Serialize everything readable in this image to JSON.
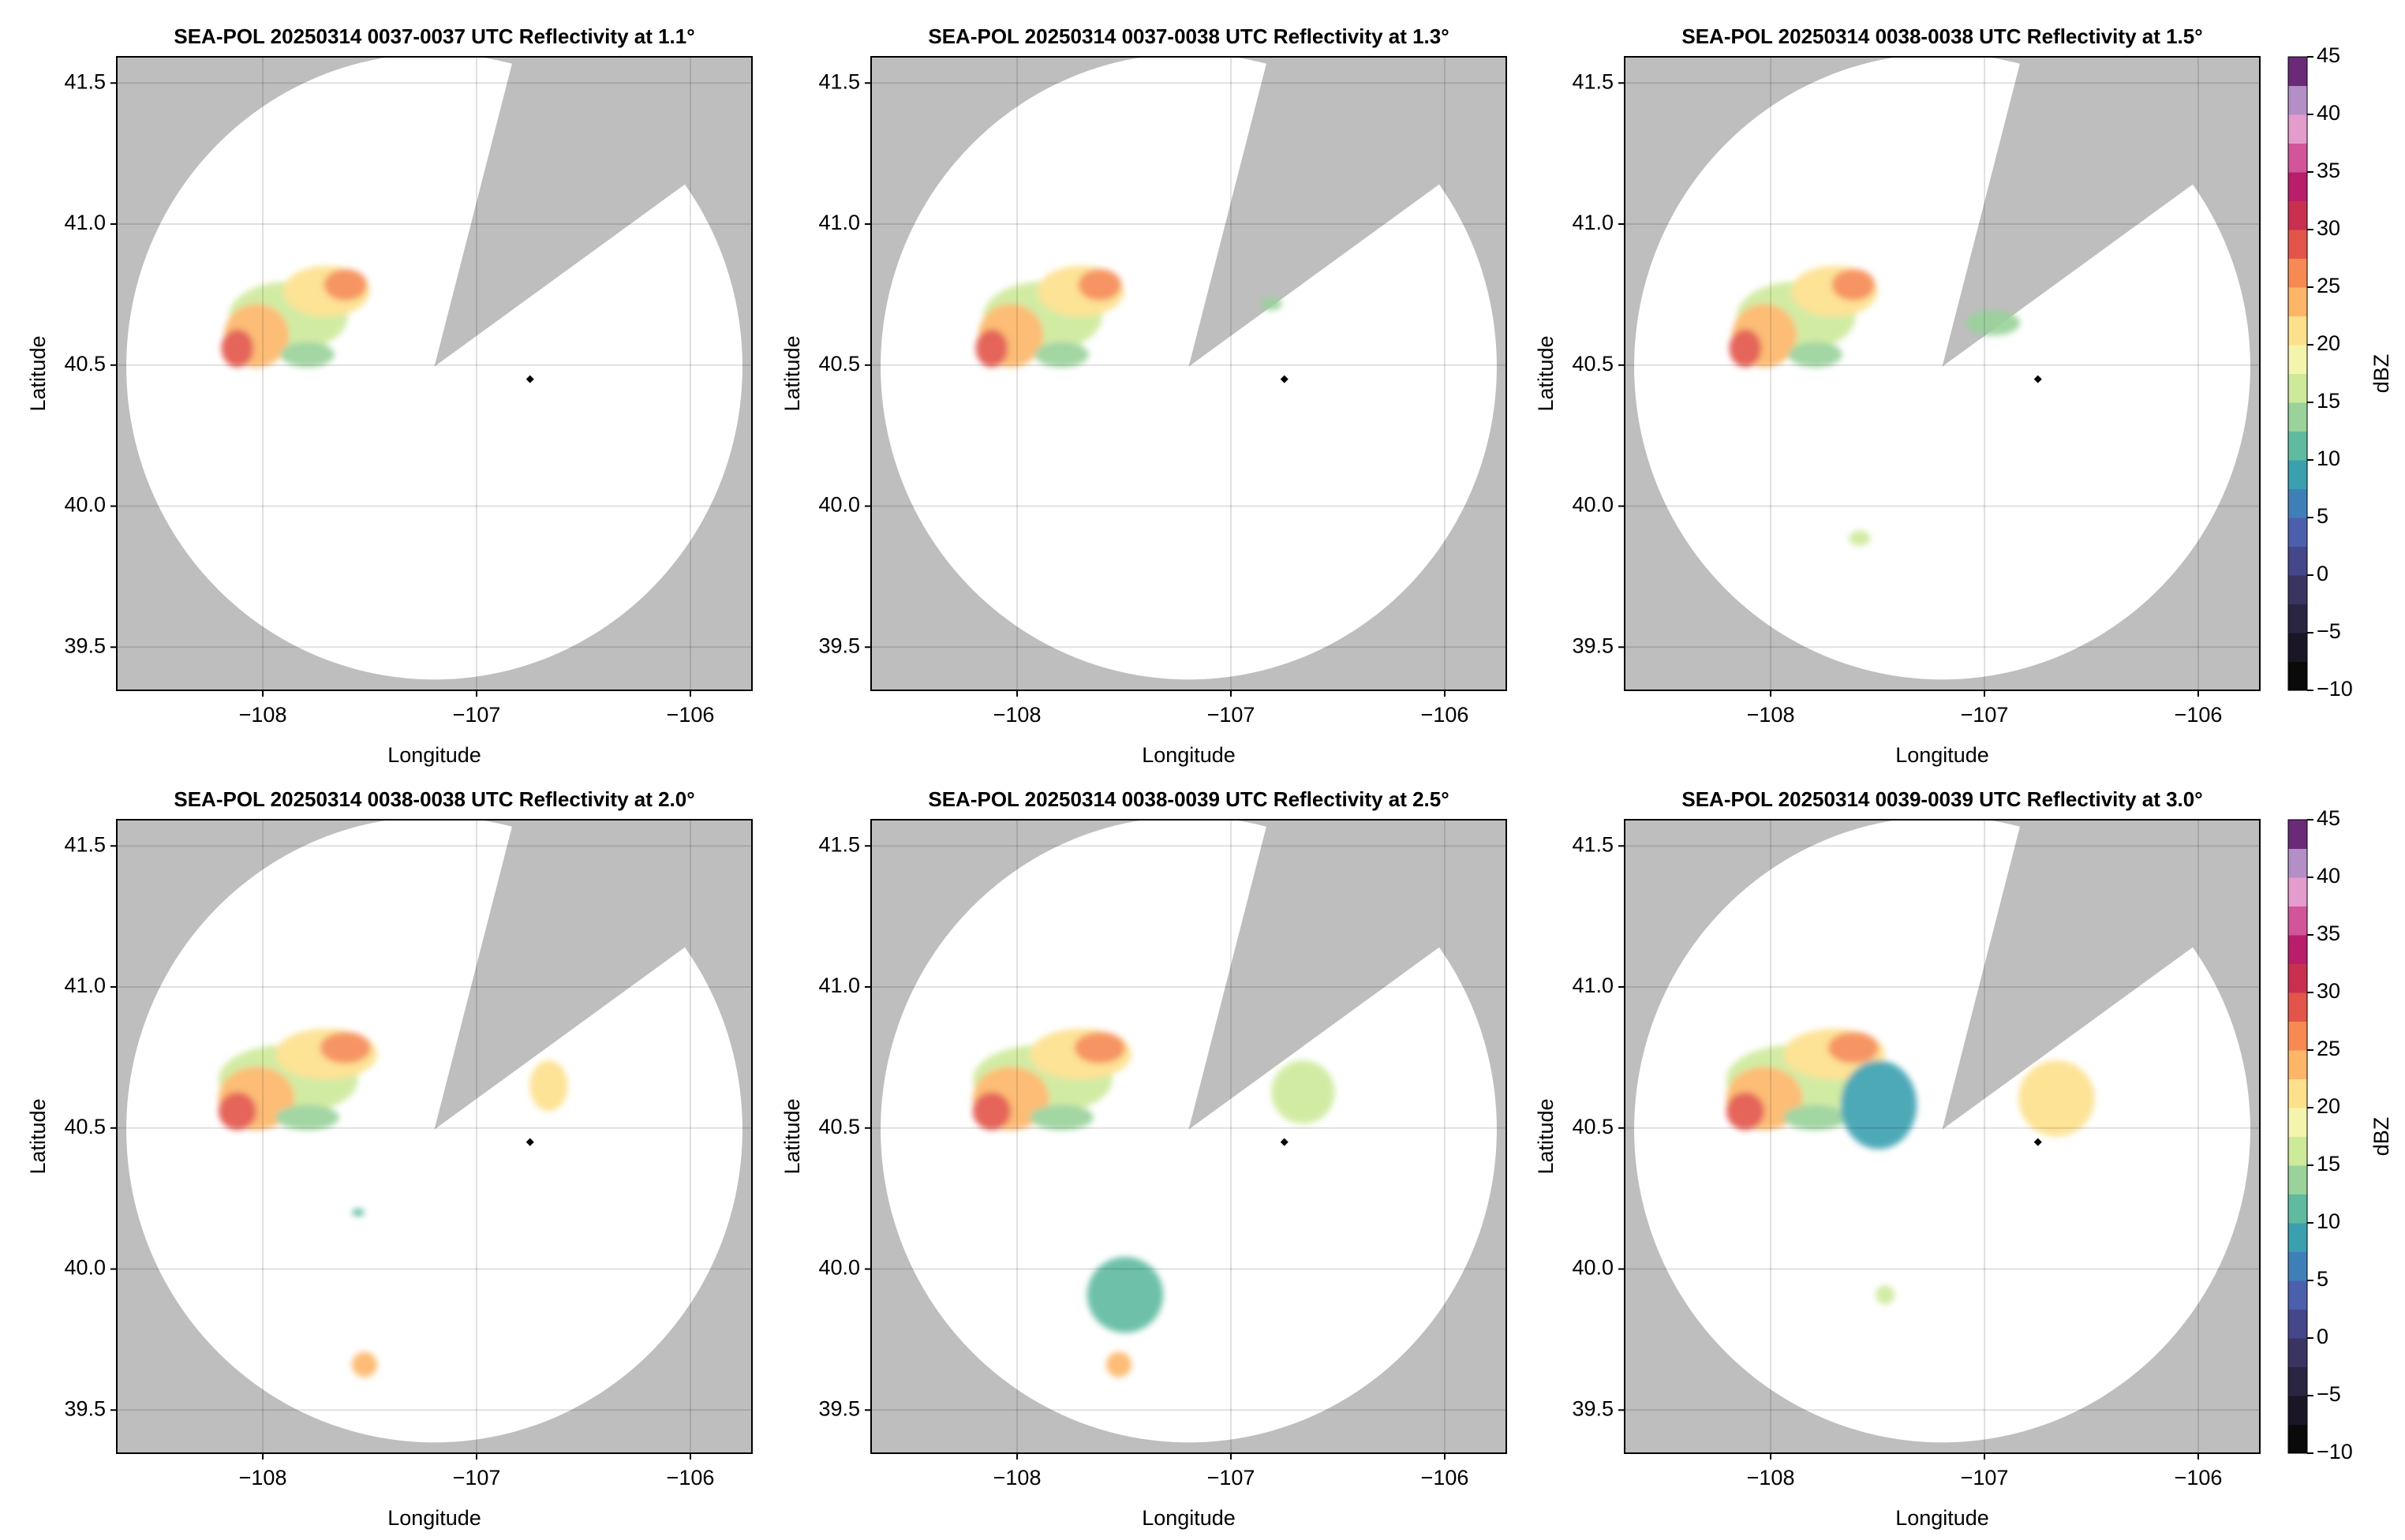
{
  "chart_data": [
    {
      "type": "radar",
      "title": "SEA-POL 20250314 0037-0037 UTC Reflectivity at 1.1°",
      "xlabel": "Longitude",
      "ylabel": "Latitude",
      "xlim": [
        -108.683,
        -105.712
      ],
      "ylim": [
        39.347,
        41.593
      ],
      "xticks": [
        {
          "value": -108,
          "label": "−108"
        },
        {
          "value": -107,
          "label": "−107"
        },
        {
          "value": -106,
          "label": "−106"
        }
      ],
      "yticks": [
        39.5,
        {
          "value": 40,
          "label": "40.0"
        },
        40.5,
        {
          "value": 41,
          "label": "41.0"
        },
        41.5
      ],
      "grid": true,
      "site": {
        "x": -106.75,
        "y": 40.45
      }
    },
    {
      "type": "radar",
      "title": "SEA-POL 20250314 0037-0038 UTC Reflectivity at 1.3°",
      "xlabel": "Longitude",
      "ylabel": "Latitude",
      "xlim": [
        -108.683,
        -105.712
      ],
      "ylim": [
        39.347,
        41.593
      ],
      "xticks": [
        {
          "value": -108,
          "label": "−108"
        },
        {
          "value": -107,
          "label": "−107"
        },
        {
          "value": -106,
          "label": "−106"
        }
      ],
      "yticks": [
        39.5,
        {
          "value": 40,
          "label": "40.0"
        },
        40.5,
        {
          "value": 41,
          "label": "41.0"
        },
        41.5
      ],
      "grid": true,
      "site": {
        "x": -106.75,
        "y": 40.45
      }
    },
    {
      "type": "radar",
      "title": "SEA-POL 20250314 0038-0038 UTC Reflectivity at 1.5°",
      "xlabel": "Longitude",
      "ylabel": "Latitude",
      "xlim": [
        -108.683,
        -105.712
      ],
      "ylim": [
        39.347,
        41.593
      ],
      "xticks": [
        {
          "value": -108,
          "label": "−108"
        },
        {
          "value": -107,
          "label": "−107"
        },
        {
          "value": -106,
          "label": "−106"
        }
      ],
      "yticks": [
        39.5,
        {
          "value": 40,
          "label": "40.0"
        },
        40.5,
        {
          "value": 41,
          "label": "41.0"
        },
        41.5
      ],
      "grid": true,
      "site": {
        "x": -106.75,
        "y": 40.45
      },
      "colorbar": {
        "label": "dBZ",
        "lim": [
          -10,
          45
        ],
        "ticks": [
          {
            "value": -10,
            "label": "−10"
          },
          {
            "value": -5,
            "label": "−5"
          },
          0,
          5,
          10,
          15,
          20,
          25,
          30,
          35,
          40,
          45
        ],
        "colors": [
          "#0a0a0a",
          "#1a1626",
          "#2a2540",
          "#3a3460",
          "#46468a",
          "#4c5fad",
          "#3f7fb8",
          "#3aa0b0",
          "#5fbaa0",
          "#99d29a",
          "#cde99a",
          "#f3f5ad",
          "#fde08b",
          "#fdb668",
          "#f68a52",
          "#e3554a",
          "#c9304f",
          "#b81e6a",
          "#d2559a",
          "#e49ccd",
          "#b48ec6",
          "#6a2a78"
        ]
      }
    },
    {
      "type": "radar",
      "title": "SEA-POL 20250314 0038-0038 UTC Reflectivity at 2.0°",
      "xlabel": "Longitude",
      "ylabel": "Latitude",
      "xlim": [
        -108.683,
        -105.712
      ],
      "ylim": [
        39.347,
        41.593
      ],
      "xticks": [
        {
          "value": -108,
          "label": "−108"
        },
        {
          "value": -107,
          "label": "−107"
        },
        {
          "value": -106,
          "label": "−106"
        }
      ],
      "yticks": [
        39.5,
        {
          "value": 40,
          "label": "40.0"
        },
        40.5,
        {
          "value": 41,
          "label": "41.0"
        },
        41.5
      ],
      "grid": true,
      "site": {
        "x": -106.75,
        "y": 40.45
      }
    },
    {
      "type": "radar",
      "title": "SEA-POL 20250314 0038-0039 UTC Reflectivity at 2.5°",
      "xlabel": "Longitude",
      "ylabel": "Latitude",
      "xlim": [
        -108.683,
        -105.712
      ],
      "ylim": [
        39.347,
        41.593
      ],
      "xticks": [
        {
          "value": -108,
          "label": "−108"
        },
        {
          "value": -107,
          "label": "−107"
        },
        {
          "value": -106,
          "label": "−106"
        }
      ],
      "yticks": [
        39.5,
        {
          "value": 40,
          "label": "40.0"
        },
        40.5,
        {
          "value": 41,
          "label": "41.0"
        },
        41.5
      ],
      "grid": true,
      "site": {
        "x": -106.75,
        "y": 40.45
      }
    },
    {
      "type": "radar",
      "title": "SEA-POL 20250314 0039-0039 UTC Reflectivity at 3.0°",
      "xlabel": "Longitude",
      "ylabel": "Latitude",
      "xlim": [
        -108.683,
        -105.712
      ],
      "ylim": [
        39.347,
        41.593
      ],
      "xticks": [
        {
          "value": -108,
          "label": "−108"
        },
        {
          "value": -107,
          "label": "−107"
        },
        {
          "value": -106,
          "label": "−106"
        }
      ],
      "yticks": [
        39.5,
        {
          "value": 40,
          "label": "40.0"
        },
        40.5,
        {
          "value": 41,
          "label": "41.0"
        },
        41.5
      ],
      "grid": true,
      "site": {
        "x": -106.75,
        "y": 40.45
      },
      "colorbar": {
        "label": "dBZ",
        "lim": [
          -10,
          45
        ],
        "ticks": [
          {
            "value": -10,
            "label": "−10"
          },
          {
            "value": -5,
            "label": "−5"
          },
          0,
          5,
          10,
          15,
          20,
          25,
          30,
          35,
          40,
          45
        ],
        "colors": [
          "#0a0a0a",
          "#1a1626",
          "#2a2540",
          "#3a3460",
          "#46468a",
          "#4c5fad",
          "#3f7fb8",
          "#3aa0b0",
          "#5fbaa0",
          "#99d29a",
          "#cde99a",
          "#f3f5ad",
          "#fde08b",
          "#fdb668",
          "#f68a52",
          "#e3554a",
          "#c9304f",
          "#b81e6a",
          "#d2559a",
          "#e49ccd",
          "#b48ec6",
          "#6a2a78"
        ]
      }
    }
  ]
}
